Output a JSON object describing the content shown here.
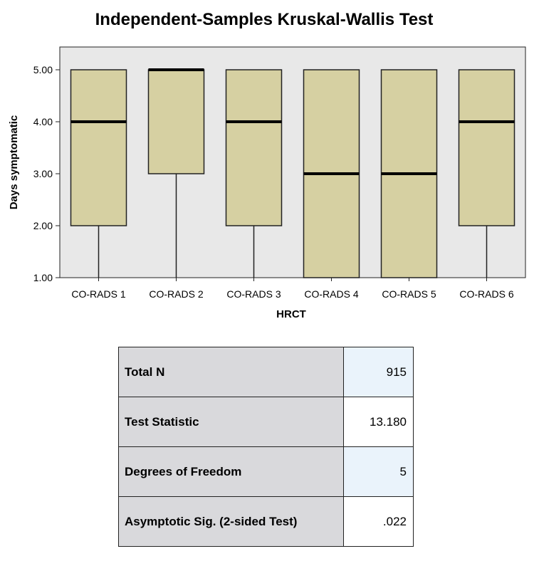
{
  "colors": {
    "plot_background": "#e8e8e8",
    "box_fill": "#d6d0a2",
    "table_label_bg": "#d9d9dc",
    "table_value_tint": "#eaf3fb"
  },
  "chart_data": {
    "type": "boxplot",
    "title": "Independent-Samples Kruskal-Wallis Test",
    "xlabel": "HRCT",
    "ylabel": "Days  symptomatic",
    "ylim": [
      1,
      5
    ],
    "yticks": [
      "1.00",
      "2.00",
      "3.00",
      "4.00",
      "5.00"
    ],
    "grid": false,
    "categories": [
      "CO-RADS 1",
      "CO-RADS 2",
      "CO-RADS 3",
      "CO-RADS 4",
      "CO-RADS 5",
      "CO-RADS 6"
    ],
    "boxes": [
      {
        "category": "CO-RADS 1",
        "min": 1,
        "q1": 2,
        "median": 4,
        "q3": 5,
        "max": 5
      },
      {
        "category": "CO-RADS 2",
        "min": 1,
        "q1": 3,
        "median": 5,
        "q3": 5,
        "max": 5
      },
      {
        "category": "CO-RADS 3",
        "min": 1,
        "q1": 2,
        "median": 4,
        "q3": 5,
        "max": 5
      },
      {
        "category": "CO-RADS 4",
        "min": 1,
        "q1": 1,
        "median": 3,
        "q3": 5,
        "max": 5
      },
      {
        "category": "CO-RADS 5",
        "min": 1,
        "q1": 1,
        "median": 3,
        "q3": 5,
        "max": 5
      },
      {
        "category": "CO-RADS 6",
        "min": 1,
        "q1": 2,
        "median": 4,
        "q3": 5,
        "max": 5
      }
    ]
  },
  "stats_table": {
    "rows": [
      {
        "label": "Total N",
        "value": "915"
      },
      {
        "label": "Test Statistic",
        "value": "13.180"
      },
      {
        "label": "Degrees of Freedom",
        "value": "5"
      },
      {
        "label": "Asymptotic Sig. (2-sided Test)",
        "value": ".022"
      }
    ]
  }
}
